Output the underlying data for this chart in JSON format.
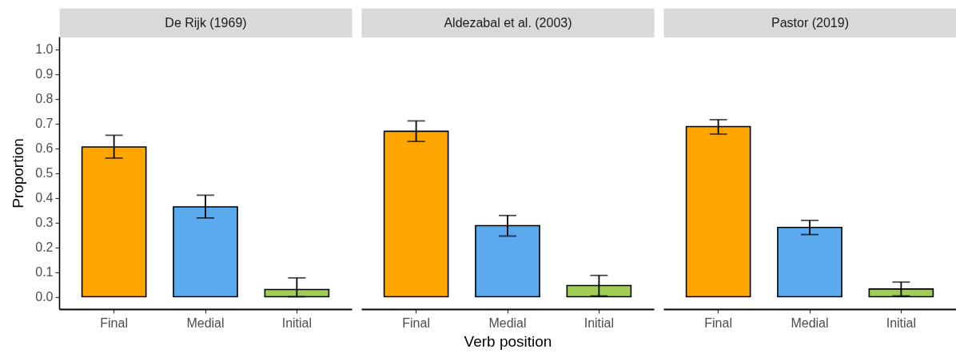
{
  "chart_data": [
    {
      "type": "bar",
      "title": "De Rijk (1969)",
      "ylabel": "Proportion",
      "categories": [
        "Final",
        "Medial",
        "Initial"
      ],
      "values": [
        0.605,
        0.363,
        0.029
      ],
      "colors": [
        "#ffa500",
        "#5aaaed",
        "#a2cd55"
      ],
      "errors": [
        [
          0.56,
          0.652
        ],
        [
          0.318,
          0.41
        ],
        [
          0,
          0.076
        ]
      ],
      "ylim": [
        -0.05,
        1.05
      ],
      "yticks": [
        {
          "value": 0,
          "label": "0.0"
        },
        0.1,
        0.2,
        0.3,
        0.4,
        0.5,
        0.6,
        0.7,
        0.8,
        0.9,
        {
          "value": 1,
          "label": "1.0"
        }
      ]
    },
    {
      "type": "bar",
      "title": "Aldezabal et al. (2003)",
      "xlabel": "Verb position",
      "categories": [
        "Final",
        "Medial",
        "Initial"
      ],
      "values": [
        0.668,
        0.287,
        0.045
      ],
      "colors": [
        "#ffa500",
        "#5aaaed",
        "#a2cd55"
      ],
      "errors": [
        [
          0.627,
          0.71
        ],
        [
          0.245,
          0.328
        ],
        [
          0.003,
          0.086
        ]
      ],
      "ylim": [
        -0.05,
        1.05
      ],
      "tick_labels": "x"
    },
    {
      "type": "bar",
      "title": "Pastor (2019)",
      "categories": [
        "Final",
        "Medial",
        "Initial"
      ],
      "values": [
        0.687,
        0.28,
        0.031
      ],
      "colors": [
        "#ffa500",
        "#5aaaed",
        "#a2cd55"
      ],
      "errors": [
        [
          0.657,
          0.715
        ],
        [
          0.251,
          0.308
        ],
        [
          0.003,
          0.059
        ]
      ],
      "ylim": [
        -0.05,
        1.05
      ],
      "tick_labels": "x"
    }
  ]
}
